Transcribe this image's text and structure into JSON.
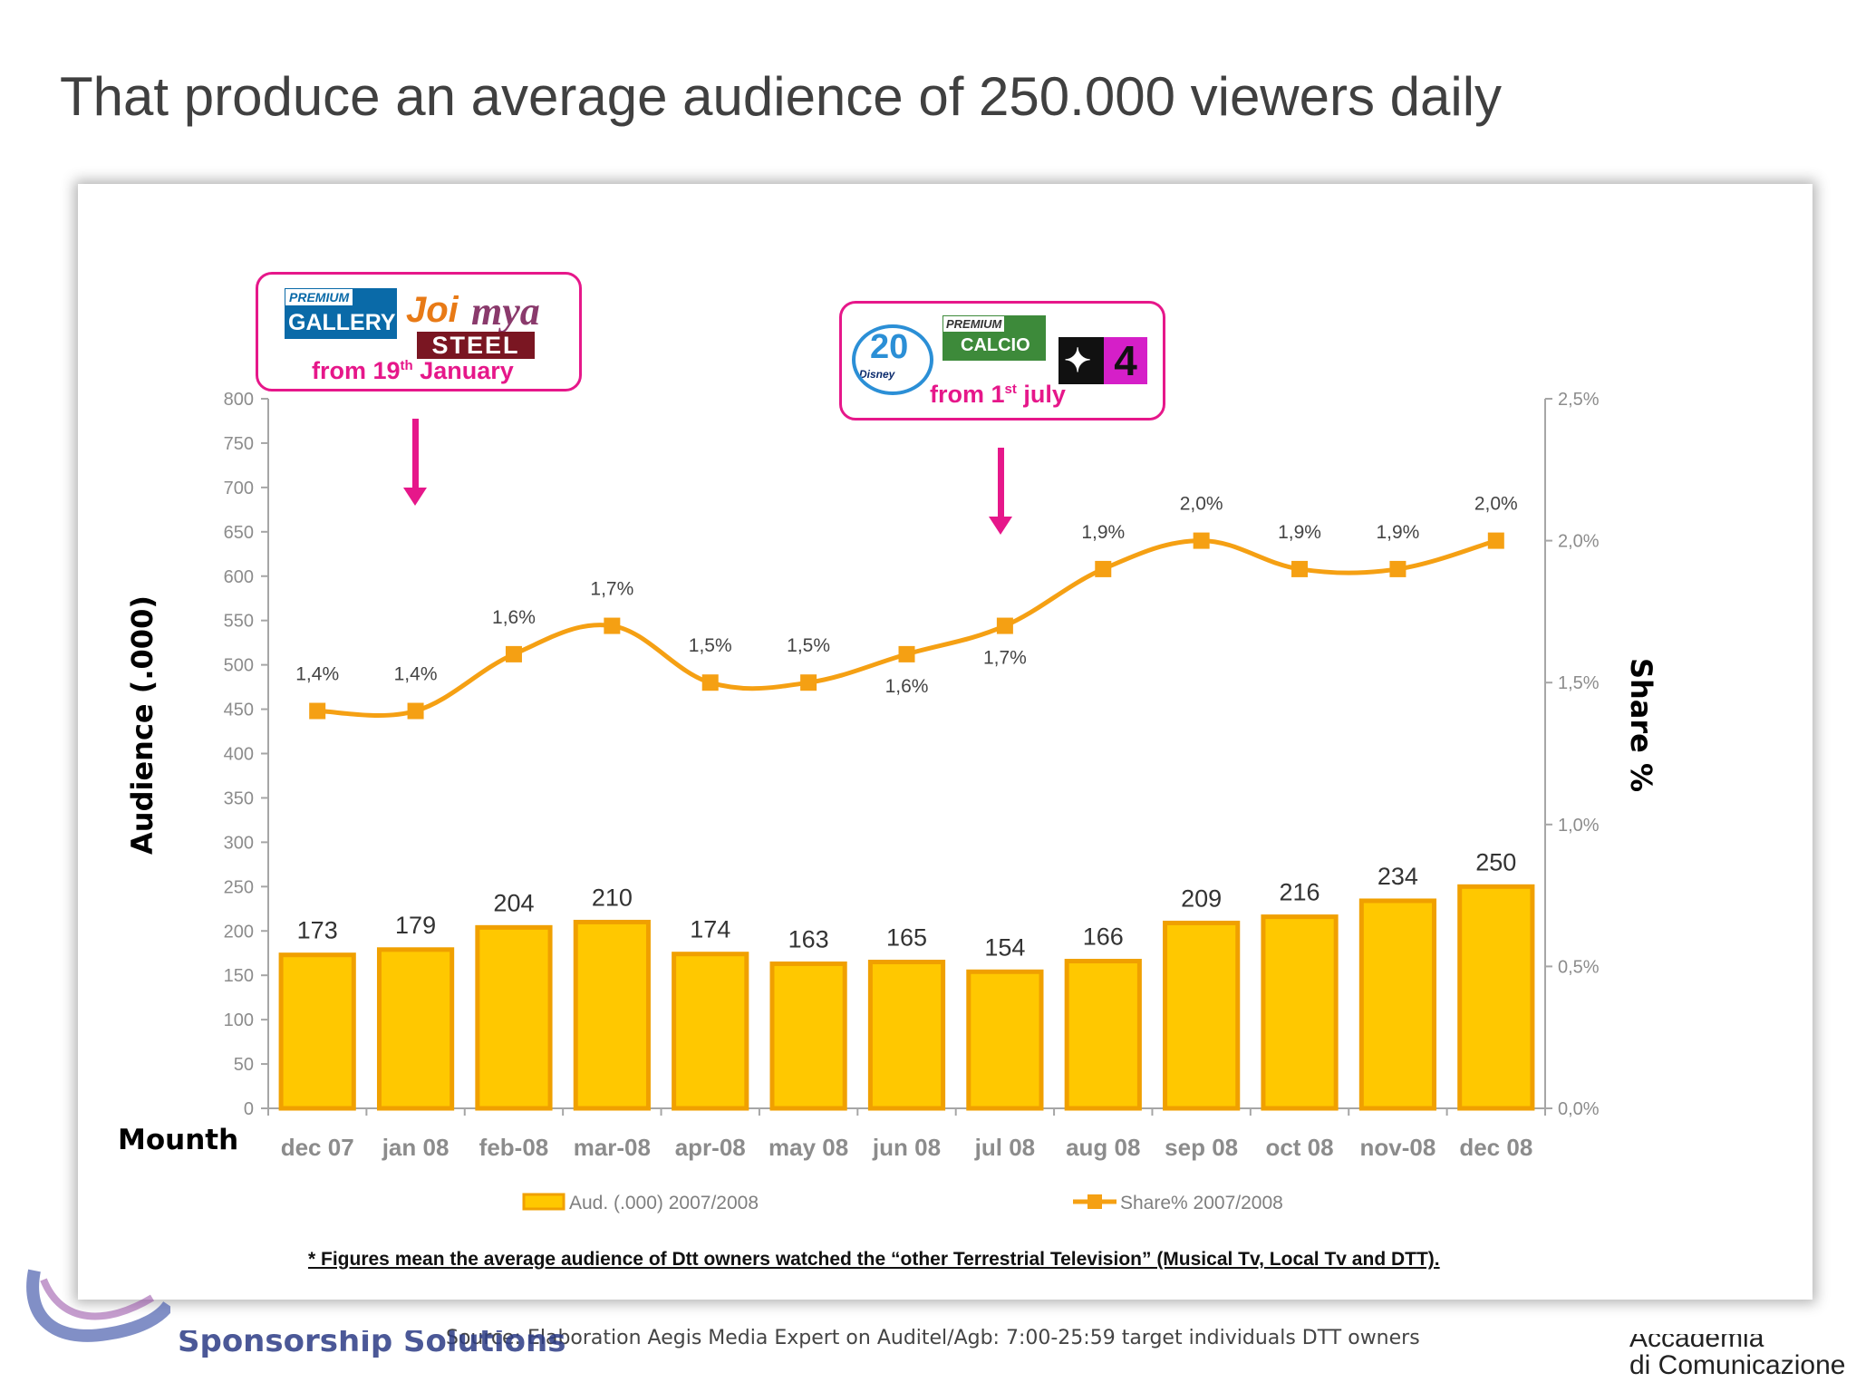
{
  "title": "That produce an average audience of  250.000 viewers daily",
  "callouts": [
    {
      "text_main": "from 19",
      "text_sup": "th",
      "text_end": " January"
    },
    {
      "text_main": "from 1",
      "text_sup": "st",
      "text_end": " july"
    }
  ],
  "logos": {
    "premium_gallery": {
      "tag": "PREMIUM",
      "main": "GALLERY"
    },
    "joi": "Joi",
    "mya": "mya",
    "steel": "STEEL",
    "disney": {
      "num": "20",
      "brand": "Disney"
    },
    "premium_calcio": {
      "tag": "PREMIUM",
      "main": "CALCIO"
    },
    "italia4": {
      "star": "✦",
      "num": "4"
    }
  },
  "footnote": "* Figures mean the average audience of Dtt owners watched the “other Terrestrial Television” (Musical Tv, Local Tv and DTT).",
  "source": "Source: Elaboration Aegis Media Expert on Auditel/Agb: 7:00-25:59 target individuals DTT owners",
  "footer": {
    "left_logo_text": "Sponsorship Solutions",
    "right_logo_line1": "Accademia",
    "right_logo_line2": "di Comunicazione"
  },
  "chart_data": {
    "type": "bar",
    "combo": "bar + line (secondary axis)",
    "categories": [
      "dec 07",
      "jan 08",
      "feb-08",
      "mar-08",
      "apr-08",
      "may 08",
      "jun 08",
      "jul 08",
      "aug 08",
      "sep 08",
      "oct 08",
      "nov-08",
      "dec 08"
    ],
    "series": [
      {
        "name": "Aud. (.000) 2007/2008",
        "type": "bar",
        "axis": "left",
        "values": [
          173,
          179,
          204,
          210,
          174,
          163,
          165,
          154,
          166,
          209,
          216,
          234,
          250
        ],
        "labels": [
          "173",
          "179",
          "204",
          "210",
          "174",
          "163",
          "165",
          "154",
          "166",
          "209",
          "216",
          "234",
          "250"
        ],
        "color": "#ffc800"
      },
      {
        "name": "Share% 2007/2008",
        "type": "line",
        "axis": "right",
        "values": [
          1.4,
          1.4,
          1.6,
          1.7,
          1.5,
          1.5,
          1.6,
          1.7,
          1.9,
          2.0,
          1.9,
          1.9,
          2.0
        ],
        "labels": [
          "1,4%",
          "1,4%",
          "1,6%",
          "1,7%",
          "1,5%",
          "1,5%",
          "1,6%",
          "1,7%",
          "1,9%",
          "2,0%",
          "1,9%",
          "1,9%",
          "2,0%"
        ],
        "color": "#f5a013"
      }
    ],
    "ylabel": "Audience (.000)",
    "y2label": "Share %",
    "xlabel": "Mounth",
    "ylim": [
      0,
      800
    ],
    "yticks": [
      "0",
      "50",
      "100",
      "150",
      "200",
      "250",
      "300",
      "350",
      "400",
      "450",
      "500",
      "550",
      "600",
      "650",
      "700",
      "750",
      "800"
    ],
    "y2lim": [
      0,
      2.5
    ],
    "y2ticks": [
      "0,0%",
      "0,5%",
      "1,0%",
      "1,5%",
      "2,0%",
      "2,5%"
    ],
    "grid": false,
    "legend": "bottom",
    "bar_border_color": "#f0a000",
    "axis_color": "#a6a6a6",
    "tick_color": "#8c8c8c",
    "accent_color": "#e6178a"
  }
}
